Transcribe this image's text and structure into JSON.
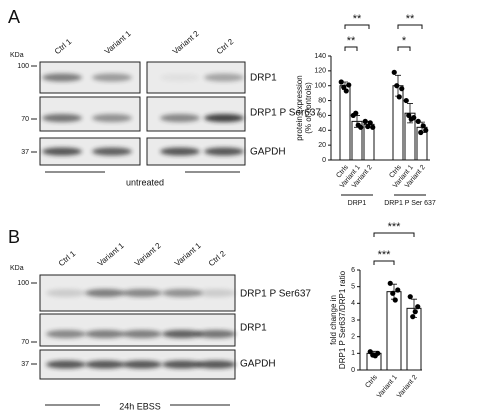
{
  "panels": [
    {
      "letter": "A",
      "kda": "KDa",
      "lanes": [
        "Ctrl 1",
        "Variant 1",
        "Variant 2",
        "Ctrl 2"
      ],
      "markers": [
        "100",
        "70",
        "37"
      ],
      "bands": [
        "DRP1",
        "DRP1 P Ser637",
        "GAPDH"
      ],
      "condition": "untreated"
    },
    {
      "letter": "B",
      "kda": "KDa",
      "lanes": [
        "Ctrl 1",
        "Variant 1",
        "Variant 2",
        "Variant 1",
        "Ctrl 2"
      ],
      "markers": [
        "100",
        "70",
        "37"
      ],
      "bands": [
        "DRP1 P Ser637",
        "DRP1",
        "GAPDH"
      ],
      "condition": "24h EBSS"
    }
  ],
  "chart_data": [
    {
      "type": "bar",
      "ylabel": [
        "protein expression",
        "(% of controls)"
      ],
      "ylim": [
        0,
        140
      ],
      "yticks": [
        0,
        20,
        40,
        60,
        80,
        100,
        120,
        140
      ],
      "color": "#ffffff",
      "point_color": "#000000",
      "groups": [
        {
          "name": "DRP1",
          "categories": [
            "Ctrls",
            "Variant 1",
            "Variant 2"
          ],
          "values": [
            100,
            52,
            48
          ],
          "errors": [
            5,
            8,
            4
          ],
          "points": [
            [
              105,
              98,
              93,
              101
            ],
            [
              60,
              63,
              47,
              44
            ],
            [
              52,
              45,
              50,
              44
            ]
          ],
          "significance": [
            {
              "from": 0,
              "to": 1,
              "label": "**"
            },
            {
              "from": 0,
              "to": 2,
              "label": "**"
            }
          ]
        },
        {
          "name": "DRP1 P Ser 637",
          "categories": [
            "Ctrls",
            "Variant 1",
            "Variant 2"
          ],
          "values": [
            100,
            63,
            44
          ],
          "errors": [
            14,
            13,
            7
          ],
          "points": [
            [
              118,
              100,
              85,
              96
            ],
            [
              80,
              60,
              55,
              57
            ],
            [
              52,
              37,
              46,
              40
            ]
          ],
          "significance": [
            {
              "from": 0,
              "to": 1,
              "label": "*"
            },
            {
              "from": 0,
              "to": 2,
              "label": "**"
            }
          ]
        }
      ]
    },
    {
      "type": "bar",
      "ylabel": [
        "fold change in",
        "DRP1 P Ser637/DRP1 ratio"
      ],
      "ylim": [
        0,
        6
      ],
      "yticks": [
        0,
        1,
        2,
        3,
        4,
        5,
        6
      ],
      "color": "#ffffff",
      "point_color": "#000000",
      "categories": [
        "Ctrls",
        "Variant 1",
        "Variant 2"
      ],
      "values": [
        1.0,
        4.7,
        3.7
      ],
      "errors": [
        0.12,
        0.45,
        0.55
      ],
      "points": [
        [
          1.1,
          0.9,
          0.85,
          1.0
        ],
        [
          5.2,
          4.6,
          4.2,
          4.8
        ],
        [
          4.4,
          3.2,
          3.5,
          3.8
        ]
      ],
      "significance": [
        {
          "from": 0,
          "to": 1,
          "label": "***"
        },
        {
          "from": 0,
          "to": 2,
          "label": "***"
        }
      ]
    }
  ]
}
